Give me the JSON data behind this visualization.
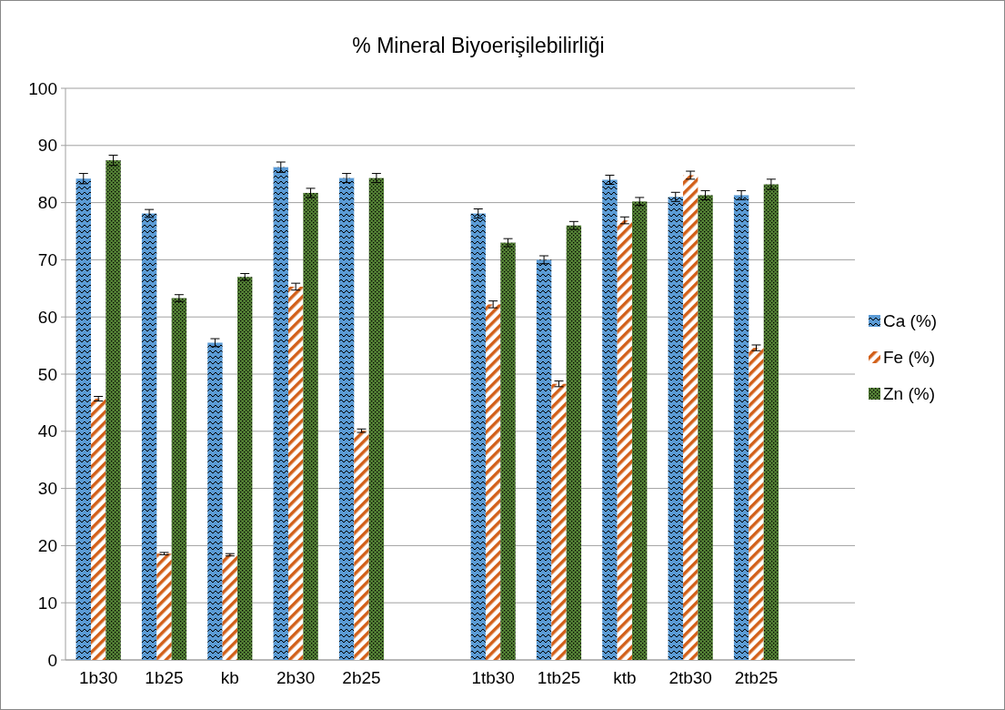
{
  "chart_data": {
    "type": "bar",
    "title": "% Mineral Biyoerişilebilirliği",
    "categories": [
      "1b30",
      "1b25",
      "kb",
      "2b30",
      "2b25",
      null,
      "1tb30",
      "1tb25",
      "ktb",
      "2tb30",
      "2tb25",
      null
    ],
    "series": [
      {
        "name": "Ca (%)",
        "color": "#5b9bd5",
        "values": [
          84.2,
          78.1,
          55.5,
          86.2,
          84.3,
          null,
          78.1,
          70.0,
          84.0,
          81.0,
          81.3,
          null
        ],
        "errors": [
          0.9,
          0.7,
          0.7,
          0.9,
          0.8,
          null,
          0.8,
          0.7,
          0.8,
          0.8,
          0.8,
          null
        ]
      },
      {
        "name": "Fe (%)",
        "color": "#d2601a",
        "values": [
          45.7,
          18.6,
          18.4,
          65.3,
          40.1,
          null,
          62.2,
          48.3,
          76.9,
          84.8,
          54.6,
          null
        ],
        "errors": [
          0.4,
          0.2,
          0.2,
          0.6,
          0.3,
          null,
          0.6,
          0.5,
          0.6,
          0.7,
          0.5,
          null
        ]
      },
      {
        "name": "Zn (%)",
        "color": "#548235",
        "values": [
          87.4,
          63.3,
          67.0,
          81.7,
          84.3,
          null,
          73.0,
          76.0,
          80.2,
          81.3,
          83.2,
          null
        ],
        "errors": [
          0.9,
          0.6,
          0.6,
          0.8,
          0.8,
          null,
          0.7,
          0.7,
          0.7,
          0.8,
          0.9,
          null
        ]
      }
    ],
    "ylim": [
      0,
      100
    ],
    "yticks": [
      0,
      10,
      20,
      30,
      40,
      50,
      60,
      70,
      80,
      90,
      100
    ],
    "grid": "y",
    "legend": "right"
  }
}
